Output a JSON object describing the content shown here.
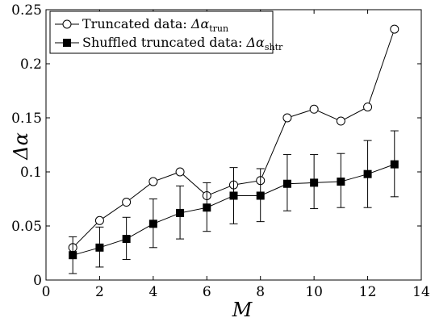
{
  "chart_data": {
    "type": "line",
    "xlabel": "M",
    "ylabel": "Δα",
    "xlim": [
      0,
      14
    ],
    "ylim": [
      0,
      0.25
    ],
    "x_ticks": [
      0,
      2,
      4,
      6,
      8,
      10,
      12,
      14
    ],
    "y_ticks": [
      0,
      0.05,
      0.1,
      0.15,
      0.2,
      0.25
    ],
    "x_tick_labels": [
      "0",
      "2",
      "4",
      "6",
      "8",
      "10",
      "12",
      "14"
    ],
    "y_tick_labels": [
      "0",
      "0.05",
      "0.1",
      "0.15",
      "0.2",
      "0.25"
    ],
    "grid": false,
    "legend_position": "top-left",
    "x": [
      1,
      2,
      3,
      4,
      5,
      6,
      7,
      8,
      9,
      10,
      11,
      12,
      13
    ],
    "series": [
      {
        "name": "Truncated data: ",
        "math": "Δα",
        "subscript": "trun",
        "marker": "open-circle",
        "color": "#000000",
        "values": [
          0.03,
          0.055,
          0.072,
          0.091,
          0.1,
          0.078,
          0.088,
          0.092,
          0.15,
          0.158,
          0.147,
          0.16,
          0.232
        ]
      },
      {
        "name": "Shuffled truncated data: ",
        "math": "Δα",
        "subscript": "shtr",
        "marker": "filled-square",
        "color": "#000000",
        "values": [
          0.023,
          0.03,
          0.038,
          0.052,
          0.062,
          0.067,
          0.078,
          0.078,
          0.089,
          0.09,
          0.091,
          0.098,
          0.107
        ],
        "error_low": [
          0.006,
          0.012,
          0.019,
          0.03,
          0.038,
          0.045,
          0.052,
          0.054,
          0.064,
          0.066,
          0.067,
          0.067,
          0.077
        ],
        "error_high": [
          0.04,
          0.049,
          0.058,
          0.075,
          0.087,
          0.09,
          0.104,
          0.103,
          0.116,
          0.116,
          0.117,
          0.129,
          0.138
        ]
      }
    ]
  }
}
